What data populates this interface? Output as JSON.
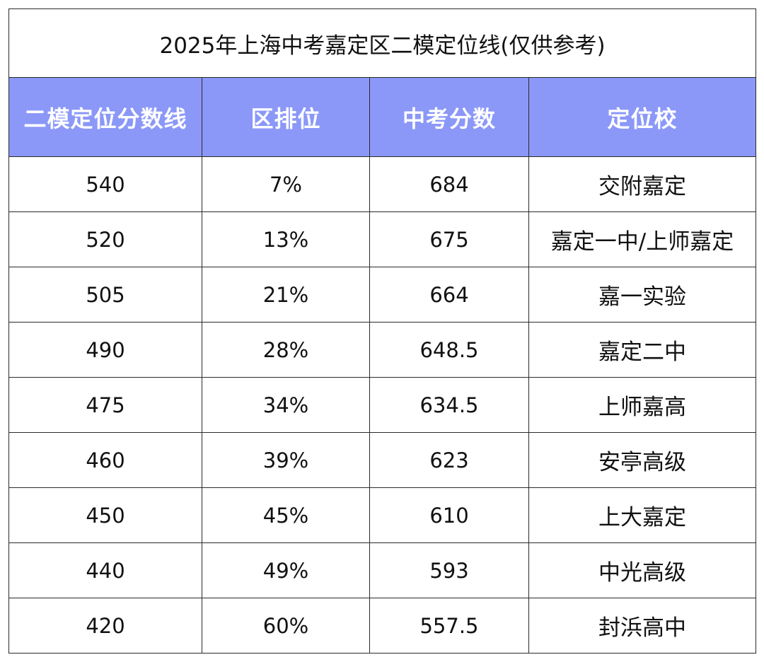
{
  "title": "2025年上海中考嘉定区二模定位线(仅供参考)",
  "columns": [
    "二模定位分数线",
    "区排位",
    "中考分数",
    "定位校"
  ],
  "rows": [
    {
      "score": "540",
      "rank": "7%",
      "zhongkao": "684",
      "school": "交附嘉定"
    },
    {
      "score": "520",
      "rank": "13%",
      "zhongkao": "675",
      "school": "嘉定一中/上师嘉定"
    },
    {
      "score": "505",
      "rank": "21%",
      "zhongkao": "664",
      "school": "嘉一实验"
    },
    {
      "score": "490",
      "rank": "28%",
      "zhongkao": "648.5",
      "school": "嘉定二中"
    },
    {
      "score": "475",
      "rank": "34%",
      "zhongkao": "634.5",
      "school": "上师嘉高"
    },
    {
      "score": "460",
      "rank": "39%",
      "zhongkao": "623",
      "school": "安亭高级"
    },
    {
      "score": "450",
      "rank": "45%",
      "zhongkao": "610",
      "school": "上大嘉定"
    },
    {
      "score": "440",
      "rank": "49%",
      "zhongkao": "593",
      "school": "中光高级"
    },
    {
      "score": "420",
      "rank": "60%",
      "zhongkao": "557.5",
      "school": "封浜高中"
    }
  ],
  "colors": {
    "header_bg": "#8b98f8",
    "header_text": "#ffffff",
    "border": "#2a2a2a"
  }
}
